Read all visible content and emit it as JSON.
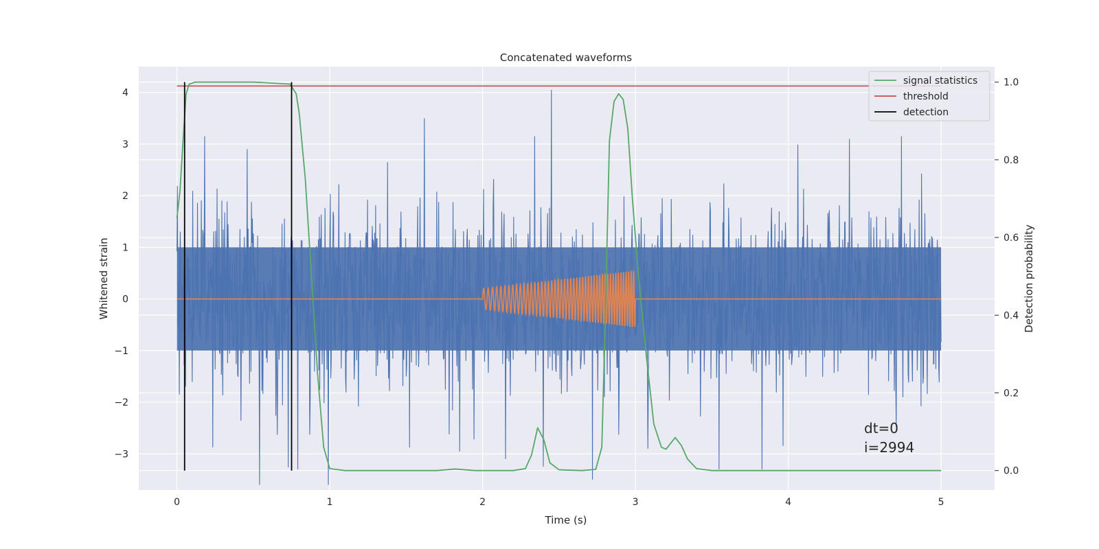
{
  "chart_data": {
    "type": "line",
    "title": "Concatenated waveforms",
    "xlabel": "Time (s)",
    "ylabel": "Whitened strain",
    "ylabel_right": "Detection probability",
    "xlim": [
      -0.25,
      5.35
    ],
    "ylim": [
      -3.7,
      4.5
    ],
    "ylim_right": [
      -0.05,
      1.04
    ],
    "xticks": [
      "0",
      "1",
      "2",
      "3",
      "4",
      "5"
    ],
    "yticks": [
      "−3",
      "−2",
      "−1",
      "0",
      "1",
      "2",
      "3",
      "4"
    ],
    "yticks_right": [
      "0.0",
      "0.2",
      "0.4",
      "0.6",
      "0.8",
      "1.0"
    ],
    "grid": true,
    "legend_position": "top-right",
    "colors": {
      "strain": "#4c72b0",
      "waveform": "#dd8452",
      "signal_statistics": "#55a868",
      "threshold": "#c44e52",
      "detection": "#000000",
      "background": "#eaeaf2"
    },
    "legend": [
      {
        "key": "signal_statistics",
        "label": "signal statistics"
      },
      {
        "key": "threshold",
        "label": "threshold"
      },
      {
        "key": "detection",
        "label": "detection"
      }
    ],
    "series": [
      {
        "key": "strain",
        "axis": "left",
        "x_range": [
          0,
          5
        ],
        "envelope": [
          1.0,
          -1.0
        ],
        "peaks": [
          [
            0.18,
            3.15
          ],
          [
            0.46,
            2.9
          ],
          [
            1.62,
            3.5
          ],
          [
            2.45,
            4.05
          ],
          [
            2.34,
            3.15
          ],
          [
            4.4,
            3.1
          ],
          [
            4.74,
            3.15
          ],
          [
            0.54,
            -3.6
          ],
          [
            0.99,
            -3.6
          ],
          [
            2.72,
            -3.5
          ],
          [
            2.15,
            -3.1
          ],
          [
            3.08,
            -2.9
          ]
        ]
      },
      {
        "key": "waveform",
        "axis": "left",
        "x_range": [
          0,
          5
        ],
        "chirp_start": 2.0,
        "chirp_end": 3.0,
        "amplitude_start": 0.2,
        "amplitude_end": 0.55
      },
      {
        "key": "signal_statistics",
        "axis": "right",
        "name": "signal statistics",
        "points": [
          [
            0.0,
            0.65
          ],
          [
            0.02,
            0.72
          ],
          [
            0.04,
            0.85
          ],
          [
            0.06,
            0.97
          ],
          [
            0.08,
            0.995
          ],
          [
            0.12,
            1.0
          ],
          [
            0.5,
            1.0
          ],
          [
            0.74,
            0.995
          ],
          [
            0.78,
            0.97
          ],
          [
            0.8,
            0.92
          ],
          [
            0.84,
            0.75
          ],
          [
            0.88,
            0.5
          ],
          [
            0.92,
            0.25
          ],
          [
            0.96,
            0.06
          ],
          [
            1.0,
            0.005
          ],
          [
            1.1,
            0.0
          ],
          [
            1.7,
            0.0
          ],
          [
            1.82,
            0.004
          ],
          [
            1.95,
            0.0
          ],
          [
            2.2,
            0.0
          ],
          [
            2.28,
            0.005
          ],
          [
            2.32,
            0.04
          ],
          [
            2.36,
            0.11
          ],
          [
            2.4,
            0.08
          ],
          [
            2.44,
            0.02
          ],
          [
            2.5,
            0.002
          ],
          [
            2.65,
            0.0
          ],
          [
            2.74,
            0.003
          ],
          [
            2.78,
            0.06
          ],
          [
            2.8,
            0.35
          ],
          [
            2.83,
            0.85
          ],
          [
            2.86,
            0.95
          ],
          [
            2.89,
            0.97
          ],
          [
            2.92,
            0.955
          ],
          [
            2.95,
            0.88
          ],
          [
            2.98,
            0.7
          ],
          [
            3.02,
            0.5
          ],
          [
            3.07,
            0.3
          ],
          [
            3.12,
            0.12
          ],
          [
            3.17,
            0.06
          ],
          [
            3.2,
            0.055
          ],
          [
            3.22,
            0.065
          ],
          [
            3.26,
            0.085
          ],
          [
            3.3,
            0.065
          ],
          [
            3.34,
            0.03
          ],
          [
            3.4,
            0.005
          ],
          [
            3.5,
            0.0
          ],
          [
            5.0,
            0.0
          ]
        ]
      },
      {
        "key": "threshold",
        "axis": "right",
        "name": "threshold",
        "points": [
          [
            0.0,
            0.99
          ],
          [
            5.0,
            0.99
          ]
        ]
      }
    ],
    "detections": [
      0.05,
      0.75
    ],
    "annotation": [
      "dt=0",
      "i=2994"
    ]
  }
}
